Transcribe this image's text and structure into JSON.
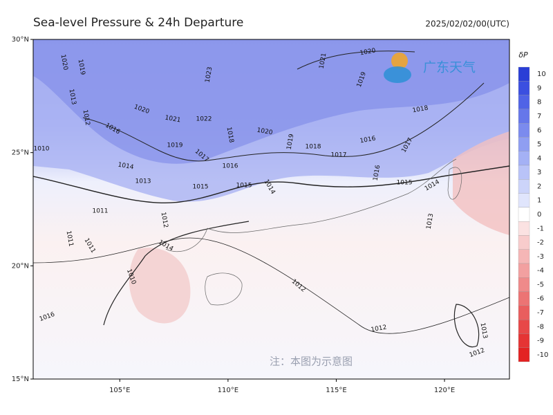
{
  "header": {
    "title": "Sea-level Pressure & 24h Departure",
    "timestamp": "2025/02/02/00(UTC)"
  },
  "map": {
    "lon_range": [
      101,
      123
    ],
    "lat_range": [
      15,
      30
    ],
    "lat_ticks": [
      {
        "value": 30,
        "label": "30°N"
      },
      {
        "value": 25,
        "label": "25°N"
      },
      {
        "value": 20,
        "label": "20°N"
      },
      {
        "value": 15,
        "label": "15°N"
      }
    ],
    "lon_ticks": [
      {
        "value": 105,
        "label": "105°E"
      },
      {
        "value": 110,
        "label": "110°E"
      },
      {
        "value": 115,
        "label": "115°E"
      },
      {
        "value": 120,
        "label": "120°E"
      }
    ],
    "contour_labels": [
      "1020",
      "1019",
      "1013",
      "1012",
      "1010",
      "1011",
      "1011",
      "1011",
      "1010",
      "1012",
      "1014",
      "1016",
      "1023",
      "1022",
      "1021",
      "1020",
      "1016",
      "1019",
      "1017",
      "1014",
      "1013",
      "1015",
      "1016",
      "1018",
      "1020",
      "1015",
      "1014",
      "1019",
      "1018",
      "1017",
      "1016",
      "1021",
      "1020",
      "1019",
      "1018",
      "1017",
      "1015",
      "1014",
      "1016",
      "1013",
      "1012",
      "1012",
      "1013",
      "1012"
    ]
  },
  "colorbar": {
    "label": "δP",
    "values": [
      10,
      9,
      8,
      7,
      6,
      5,
      4,
      3,
      2,
      1,
      0,
      -1,
      -2,
      -3,
      -4,
      -5,
      -6,
      -7,
      -8,
      -9,
      -10
    ],
    "colors": [
      "#2a3ed6",
      "#3b4fe0",
      "#5063e6",
      "#6677ea",
      "#7b8bee",
      "#8f9ef2",
      "#a4b1f5",
      "#b9c3f8",
      "#ccd4fa",
      "#e0e5fc",
      "#ffffff",
      "#fbe2e2",
      "#f8cccc",
      "#f5b6b6",
      "#f2a0a0",
      "#ef8a8a",
      "#ec7474",
      "#e95e5e",
      "#e74848",
      "#e53434",
      "#e32222"
    ]
  },
  "watermark": "注：本图为示意图",
  "logo": "广东天气"
}
